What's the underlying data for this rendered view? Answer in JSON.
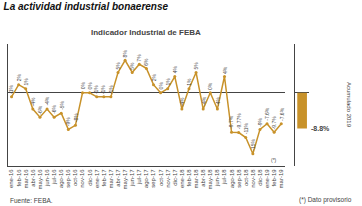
{
  "chart_data": [
    {
      "type": "line",
      "title": "La actividad industrial bonaerense",
      "subtitle": "Indicador Industrial de FEBA",
      "categories": [
        "ene-16",
        "feb-16",
        "mar-16",
        "abr-16",
        "may-16",
        "jun-16",
        "jul-16",
        "ago-16",
        "sep-16",
        "oct-16",
        "nov-16",
        "dic-16",
        "ene-17",
        "feb-17",
        "mar-17",
        "abr-17",
        "may-17",
        "jun-17",
        "jul-17",
        "ago-17",
        "sep-17",
        "oct-17",
        "nov-17",
        "dic-17",
        "ene-18",
        "feb-18",
        "mar-18",
        "abr-18",
        "may-18",
        "jun-18",
        "jul-18",
        "ago-18",
        "sep-18",
        "oct-18",
        "nov-18",
        "dic-18",
        "ene-19",
        "feb-19",
        "mar-19"
      ],
      "values": [
        -1,
        2,
        1,
        -4,
        -6,
        -4,
        -6,
        -5,
        -9,
        -8,
        0,
        0,
        -1,
        -1,
        -1,
        5,
        8,
        5,
        7,
        6,
        2,
        0,
        1,
        4,
        -4,
        1,
        5,
        -4,
        0,
        -4,
        4,
        -9.7,
        -9.77,
        -11,
        -15,
        -9,
        -7.6,
        -9.7,
        -7.6
      ],
      "value_labels": [
        "-1%",
        "2%",
        "1%",
        "-4%",
        "-6%",
        "-4%",
        "-6%",
        "-5%",
        "-9%",
        "-8%",
        "0%",
        "0%",
        "-1%",
        "-1%",
        "-1%",
        "5%",
        "8%",
        "5%",
        "7%",
        "6%",
        "2%",
        "0%",
        "1%",
        "4%",
        "-4%",
        "1%",
        "5%",
        "-4%",
        "0%",
        "-4%",
        "4%",
        "-9.7%",
        "-9.77%",
        "-11%",
        "-15%",
        "-9%",
        "-7.6%",
        "-9.7%",
        "-7.6%"
      ],
      "data_labels": true,
      "color": "#C8922A",
      "marker": "circle",
      "ylim": [
        -18,
        12
      ],
      "tick_labels": "x",
      "grid": false,
      "annotations": [
        {
          "text": "(*)",
          "x": "feb-19"
        },
        {
          "text": "Fuente: FEBA."
        },
        {
          "text": "(*) Dato provisorio"
        }
      ]
    },
    {
      "type": "bar",
      "categories": [
        null
      ],
      "values": [
        -8.8
      ],
      "value_labels": [
        "-8.8%"
      ],
      "data_labels": true,
      "color": "#C8922A",
      "ylim": [
        -18,
        12
      ],
      "ylabel": "Acumulado 2019",
      "tick_labels": false,
      "grid": false
    }
  ]
}
